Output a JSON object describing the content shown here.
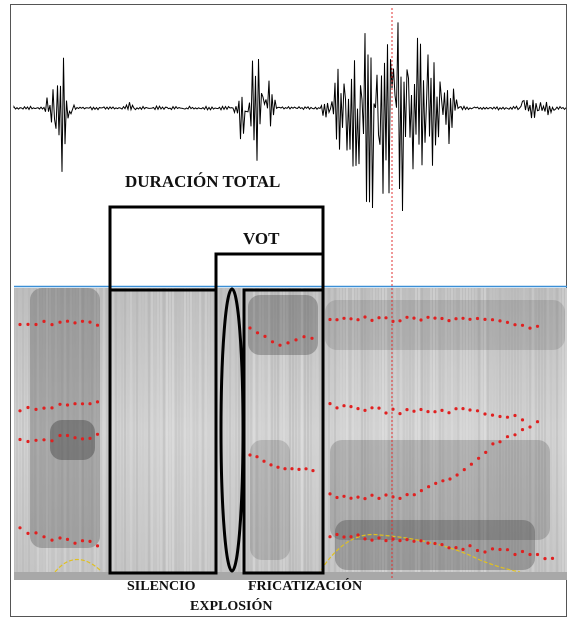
{
  "labels": {
    "duracion_total": "DURACIÓN TOTAL",
    "vot": "VOT",
    "silencio": "SILENCIO",
    "explosion": "EXPLOSIÓN",
    "fricatizacion": "FRICATIZACIÓN"
  },
  "colors": {
    "waveform": "#000000",
    "formant_dots": "#e02020",
    "pitch_trace": "#e0c020",
    "cursor_line": "#e03030",
    "divider_line": "#3b8fd6",
    "spectrogram_bg": "#c9c9c9",
    "annotation_stroke": "#000000"
  }
}
